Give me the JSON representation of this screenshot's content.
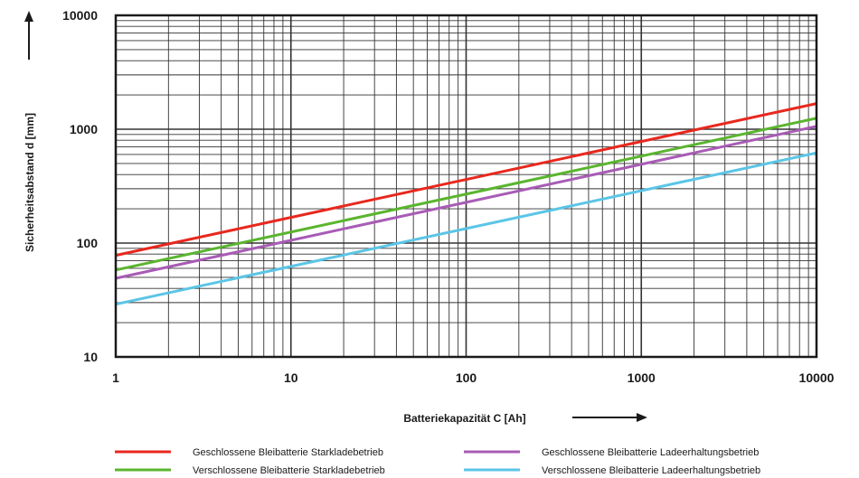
{
  "chart_data": {
    "type": "line",
    "x_scale": "log",
    "y_scale": "log",
    "xlim": [
      1,
      10000
    ],
    "ylim": [
      10,
      10000
    ],
    "x_ticks": [
      "1",
      "10",
      "100",
      "1000",
      "10000"
    ],
    "y_ticks": [
      "10",
      "100",
      "1000",
      "10000"
    ],
    "xlabel": "Batteriekapazität C [Ah]",
    "ylabel": "Sicherheitsabstand d [mm]",
    "grid": true,
    "legend_position": "bottom",
    "series": [
      {
        "name": "Geschlossene Bleibatterie Starkladebetrieb",
        "color": "#e8281e",
        "x": [
          1,
          10000
        ],
        "y": [
          78,
          1680
        ]
      },
      {
        "name": "Verschlossene Bleibatterie Starkladebetrieb",
        "color": "#5ab52e",
        "x": [
          1,
          10000
        ],
        "y": [
          58,
          1250
        ]
      },
      {
        "name": "Geschlossene Bleibatterie Ladeerhaltungsbetrieb",
        "color": "#a85cb5",
        "x": [
          1,
          10000
        ],
        "y": [
          49,
          1060
        ]
      },
      {
        "name": "Verschlossene Bleibatterie Ladeerhaltungsbetrieb",
        "color": "#5bc5e6",
        "x": [
          1,
          10000
        ],
        "y": [
          29,
          620
        ]
      }
    ]
  }
}
